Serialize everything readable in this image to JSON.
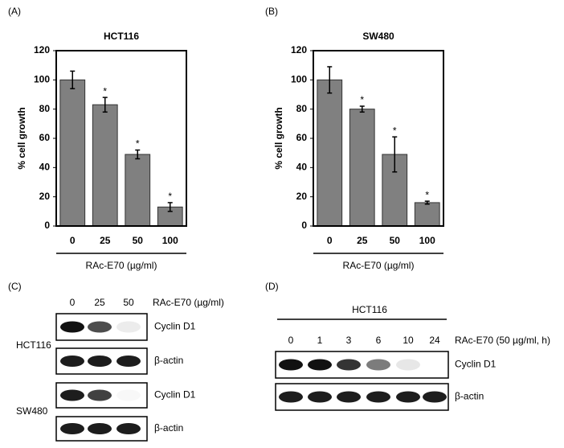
{
  "chart_data": [
    {
      "type": "bar",
      "panel_label": "(A)",
      "title": "HCT116",
      "y_label": "% cell growth",
      "x_label": "RAc-E70 (µg/ml)",
      "categories": [
        "0",
        "25",
        "50",
        "100"
      ],
      "values": [
        100,
        83,
        49,
        13
      ],
      "errors": [
        6,
        5,
        3,
        3
      ],
      "annotations": [
        {
          "x": "25",
          "text": "*"
        },
        {
          "x": "50",
          "text": "*"
        },
        {
          "x": "100",
          "text": "*"
        }
      ],
      "color": "#808080",
      "ylim": [
        0,
        120
      ],
      "yticks": [
        0,
        20,
        40,
        60,
        80,
        100,
        120
      ],
      "grid": false
    },
    {
      "type": "bar",
      "panel_label": "(B)",
      "title": "SW480",
      "y_label": "% cell growth",
      "x_label": "RAc-E70 (µg/ml)",
      "categories": [
        "0",
        "25",
        "50",
        "100"
      ],
      "values": [
        100,
        80,
        49,
        16
      ],
      "errors": [
        9,
        2,
        12,
        1
      ],
      "annotations": [
        {
          "x": "25",
          "text": "*"
        },
        {
          "x": "50",
          "text": "*"
        },
        {
          "x": "100",
          "text": "*"
        }
      ],
      "color": "#808080",
      "ylim": [
        0,
        120
      ],
      "yticks": [
        0,
        20,
        40,
        60,
        80,
        100,
        120
      ],
      "grid": false
    }
  ],
  "panel_c": {
    "label": "(C)",
    "lanes": [
      "0",
      "25",
      "50"
    ],
    "treatment": "RAc-E70 (µg/ml)",
    "cell_lines": [
      "HCT116",
      "SW480"
    ],
    "rows": [
      "Cyclin D1",
      "β-actin",
      "Cyclin D1",
      "β-actin"
    ]
  },
  "panel_d": {
    "label": "(D)",
    "cell_line": "HCT116",
    "lanes": [
      "0",
      "1",
      "3",
      "6",
      "10",
      "24"
    ],
    "treatment": "RAc-E70 (50 µg/ml, h)",
    "rows": [
      "Cyclin D1",
      "β-actin"
    ]
  }
}
